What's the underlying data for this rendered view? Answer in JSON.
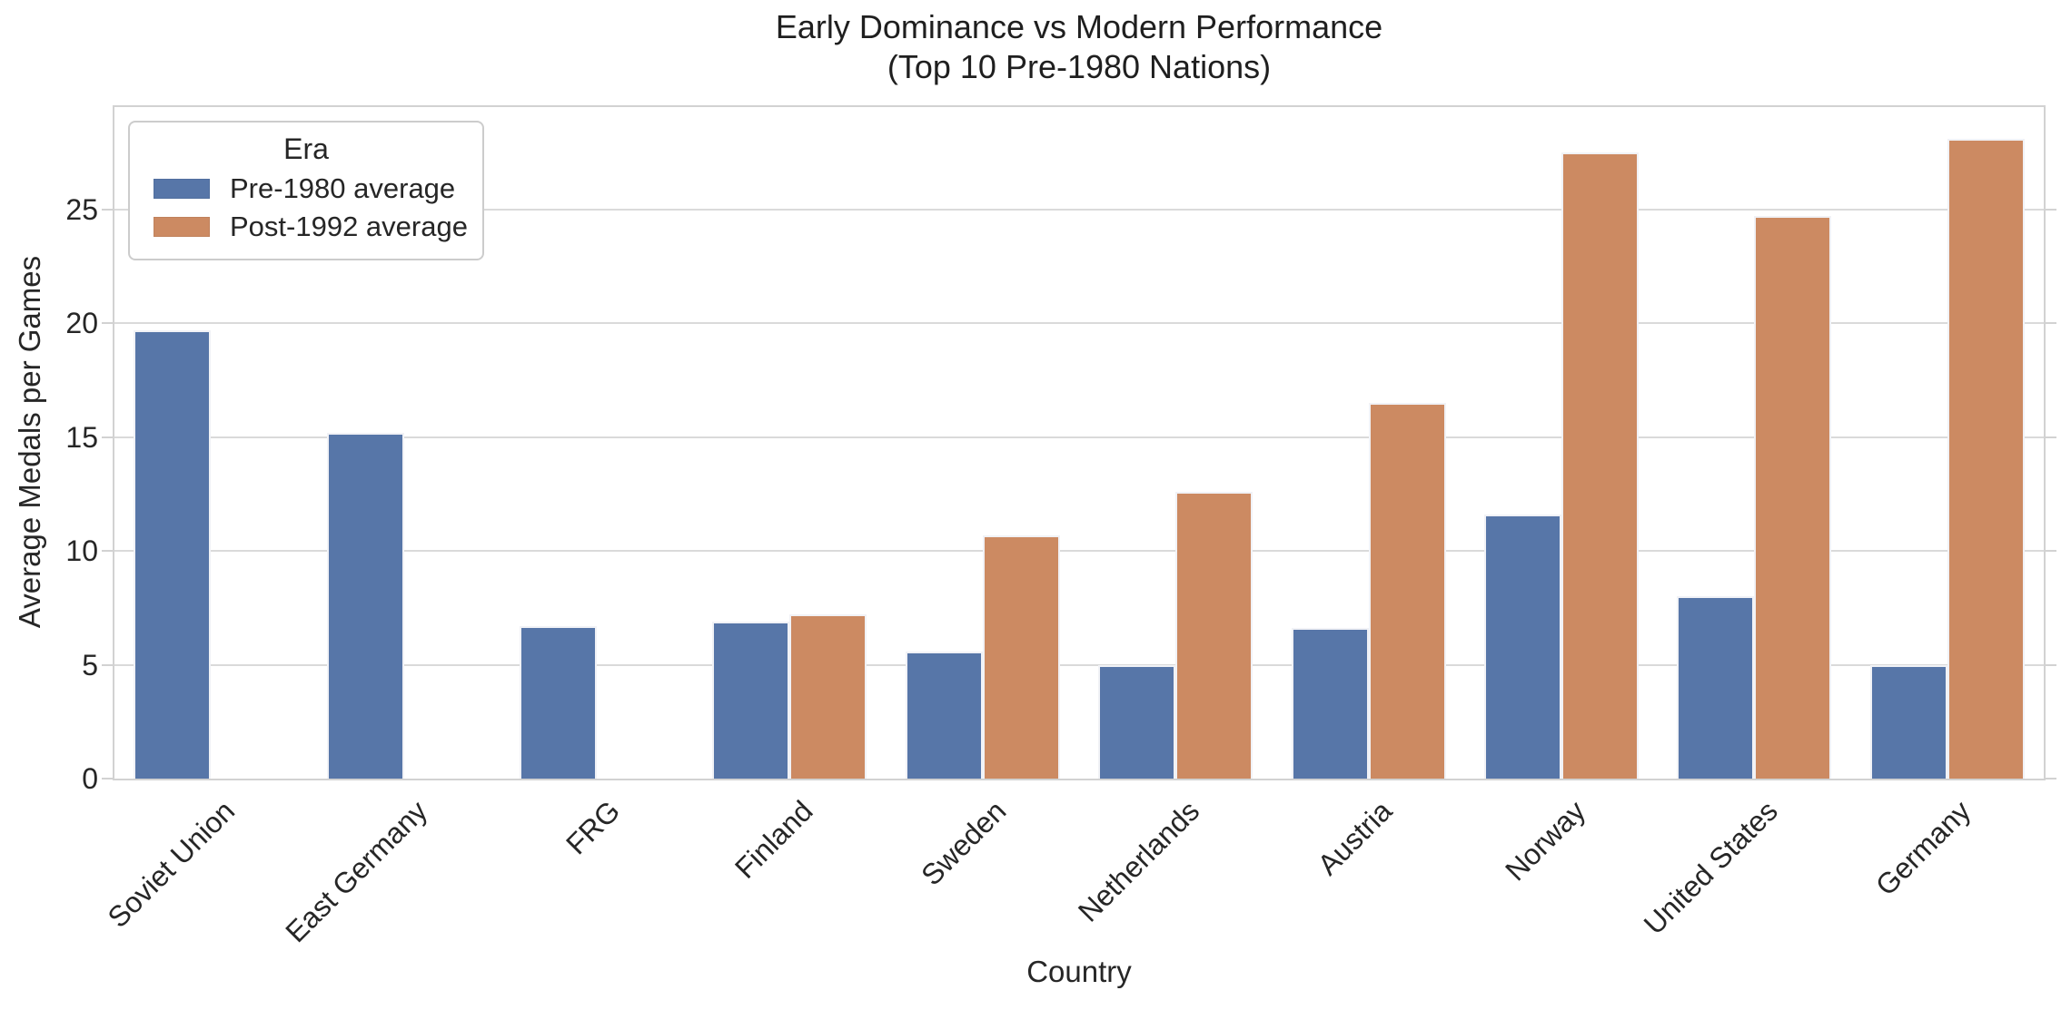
{
  "title": {
    "line1": "Early Dominance vs Modern Performance",
    "line2": "(Top 10 Pre-1980 Nations)"
  },
  "axes": {
    "x_label": "Country",
    "y_label": "Average Medals per Games",
    "y_ticks": [
      0,
      5,
      10,
      15,
      20,
      25
    ],
    "y_max": 29.5
  },
  "legend": {
    "title": "Era",
    "entries": [
      {
        "label": "Pre-1980 average",
        "color": "#5776A8"
      },
      {
        "label": "Post-1992 average",
        "color": "#CC8A62"
      }
    ]
  },
  "colors": {
    "pre_1980": "#5776A8",
    "post_1992": "#CC8A62",
    "grid": "#DADADA",
    "frame": "#D2D2D2",
    "text": "#262626"
  },
  "chart_data": {
    "type": "bar",
    "title": "Early Dominance vs Modern Performance (Top 10 Pre-1980 Nations)",
    "xlabel": "Country",
    "ylabel": "Average Medals per Games",
    "ylim": [
      0,
      29.5
    ],
    "grid": "horizontal",
    "legend_position": "upper left",
    "legend_title": "Era",
    "categories": [
      "Soviet Union",
      "East Germany",
      "FRG",
      "Finland",
      "Sweden",
      "Netherlands",
      "Austria",
      "Norway",
      "United States",
      "Germany"
    ],
    "series": [
      {
        "name": "Pre-1980 average",
        "color": "#5776A8",
        "values": [
          19.7,
          15.2,
          6.7,
          6.9,
          5.6,
          5.0,
          6.6,
          11.6,
          8.0,
          5.0
        ]
      },
      {
        "name": "Post-1992 average",
        "color": "#CC8A62",
        "values": [
          null,
          null,
          null,
          7.2,
          10.7,
          12.6,
          16.5,
          27.5,
          24.7,
          28.1
        ]
      }
    ]
  }
}
